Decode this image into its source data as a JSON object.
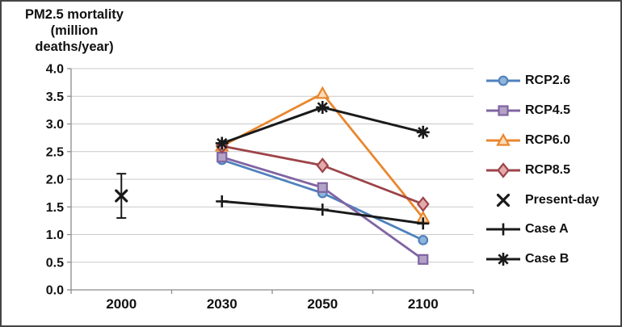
{
  "chart_data": {
    "type": "line",
    "title": "PM2.5 mortality\n(million\ndeaths/year)",
    "xlabel": "",
    "ylabel": "PM2.5 mortality (million deaths/year)",
    "x_categories": [
      "2000",
      "2030",
      "2050",
      "2100"
    ],
    "ylim": [
      0.0,
      4.0
    ],
    "ytick_step": 0.5,
    "ytick_labels_top_to_bottom": [
      "4.0",
      "3.5",
      "3.0",
      "2.5",
      "2.0",
      "1.5",
      "1.0",
      "0.5",
      "0.0"
    ],
    "grid": true,
    "legend_position": "right",
    "axis_color": "#8c8c8c",
    "grid_color": "#c9c9c9",
    "text_color": "#111111",
    "series": [
      {
        "name": "RCP2.6",
        "marker": "circle",
        "color": "#4F81BD",
        "fill": "#8FB4DA",
        "line": true,
        "x": [
          "2030",
          "2050",
          "2100"
        ],
        "values": [
          2.35,
          1.75,
          0.9
        ]
      },
      {
        "name": "RCP4.5",
        "marker": "square",
        "color": "#8064A2",
        "fill": "#B3A2C7",
        "line": true,
        "x": [
          "2030",
          "2050",
          "2100"
        ],
        "values": [
          2.4,
          1.85,
          0.55
        ]
      },
      {
        "name": "RCP6.0",
        "marker": "triangle",
        "color": "#E8872E",
        "fill": "#FBDCB9",
        "line": true,
        "x": [
          "2030",
          "2050",
          "2100"
        ],
        "values": [
          2.6,
          3.55,
          1.3
        ]
      },
      {
        "name": "RCP8.5",
        "marker": "diamond",
        "color": "#9C4449",
        "fill": "#E3A9AC",
        "line": true,
        "x": [
          "2030",
          "2050",
          "2100"
        ],
        "values": [
          2.6,
          2.25,
          1.55
        ]
      },
      {
        "name": "Present-day",
        "marker": "x",
        "color": "#1A1A1A",
        "fill": "#1A1A1A",
        "line": false,
        "x": [
          "2000"
        ],
        "values": [
          1.7
        ],
        "error_bars": {
          "low": [
            1.3
          ],
          "high": [
            2.1
          ]
        }
      },
      {
        "name": "Case A",
        "marker": "plus",
        "color": "#1A1A1A",
        "fill": "#1A1A1A",
        "line": true,
        "x": [
          "2030",
          "2050",
          "2100"
        ],
        "values": [
          1.6,
          1.45,
          1.2
        ]
      },
      {
        "name": "Case B",
        "marker": "asterisk",
        "color": "#1A1A1A",
        "fill": "#1A1A1A",
        "line": true,
        "x": [
          "2030",
          "2050",
          "2100"
        ],
        "values": [
          2.65,
          3.3,
          2.85
        ]
      }
    ]
  }
}
